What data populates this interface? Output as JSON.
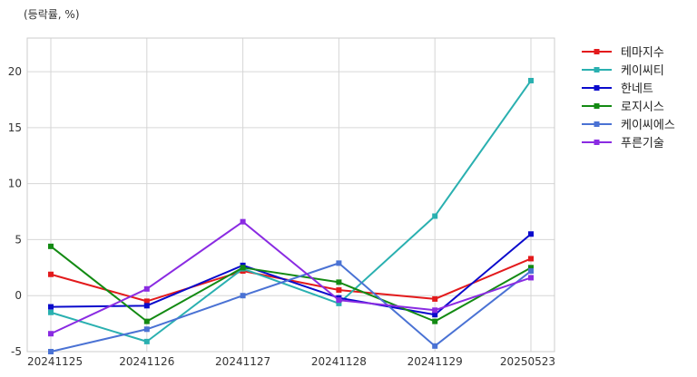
{
  "chart_data": {
    "type": "line",
    "unit_label": "(등락률, %)",
    "xlabel": "",
    "ylabel": "",
    "categories": [
      "20241125",
      "20241126",
      "20241127",
      "20241128",
      "20241129",
      "20250523"
    ],
    "ylim": [
      -5,
      23
    ],
    "yticks": [
      -5,
      0,
      5,
      10,
      15,
      20
    ],
    "grid": true,
    "legend_position": "top-right outside",
    "series": [
      {
        "name": "테마지수",
        "color": "#e31a1c",
        "values": [
          1.9,
          -0.5,
          2.2,
          0.5,
          -0.3,
          3.3
        ]
      },
      {
        "name": "케이씨티",
        "color": "#2ab0b0",
        "values": [
          -1.5,
          -4.1,
          2.4,
          -0.7,
          7.1,
          19.2
        ]
      },
      {
        "name": "한네트",
        "color": "#0a0acc",
        "values": [
          -1.0,
          -0.9,
          2.7,
          -0.2,
          -1.7,
          5.5
        ]
      },
      {
        "name": "로지시스",
        "color": "#138a13",
        "values": [
          4.4,
          -2.3,
          2.5,
          1.2,
          -2.3,
          2.5
        ]
      },
      {
        "name": "케이씨에스",
        "color": "#4a72d4",
        "values": [
          -5.0,
          -3.0,
          0.0,
          2.9,
          -4.5,
          2.2
        ]
      },
      {
        "name": "푸른기술",
        "color": "#8a2be2",
        "values": [
          -3.4,
          0.6,
          6.6,
          -0.4,
          -1.3,
          1.6
        ]
      }
    ]
  }
}
